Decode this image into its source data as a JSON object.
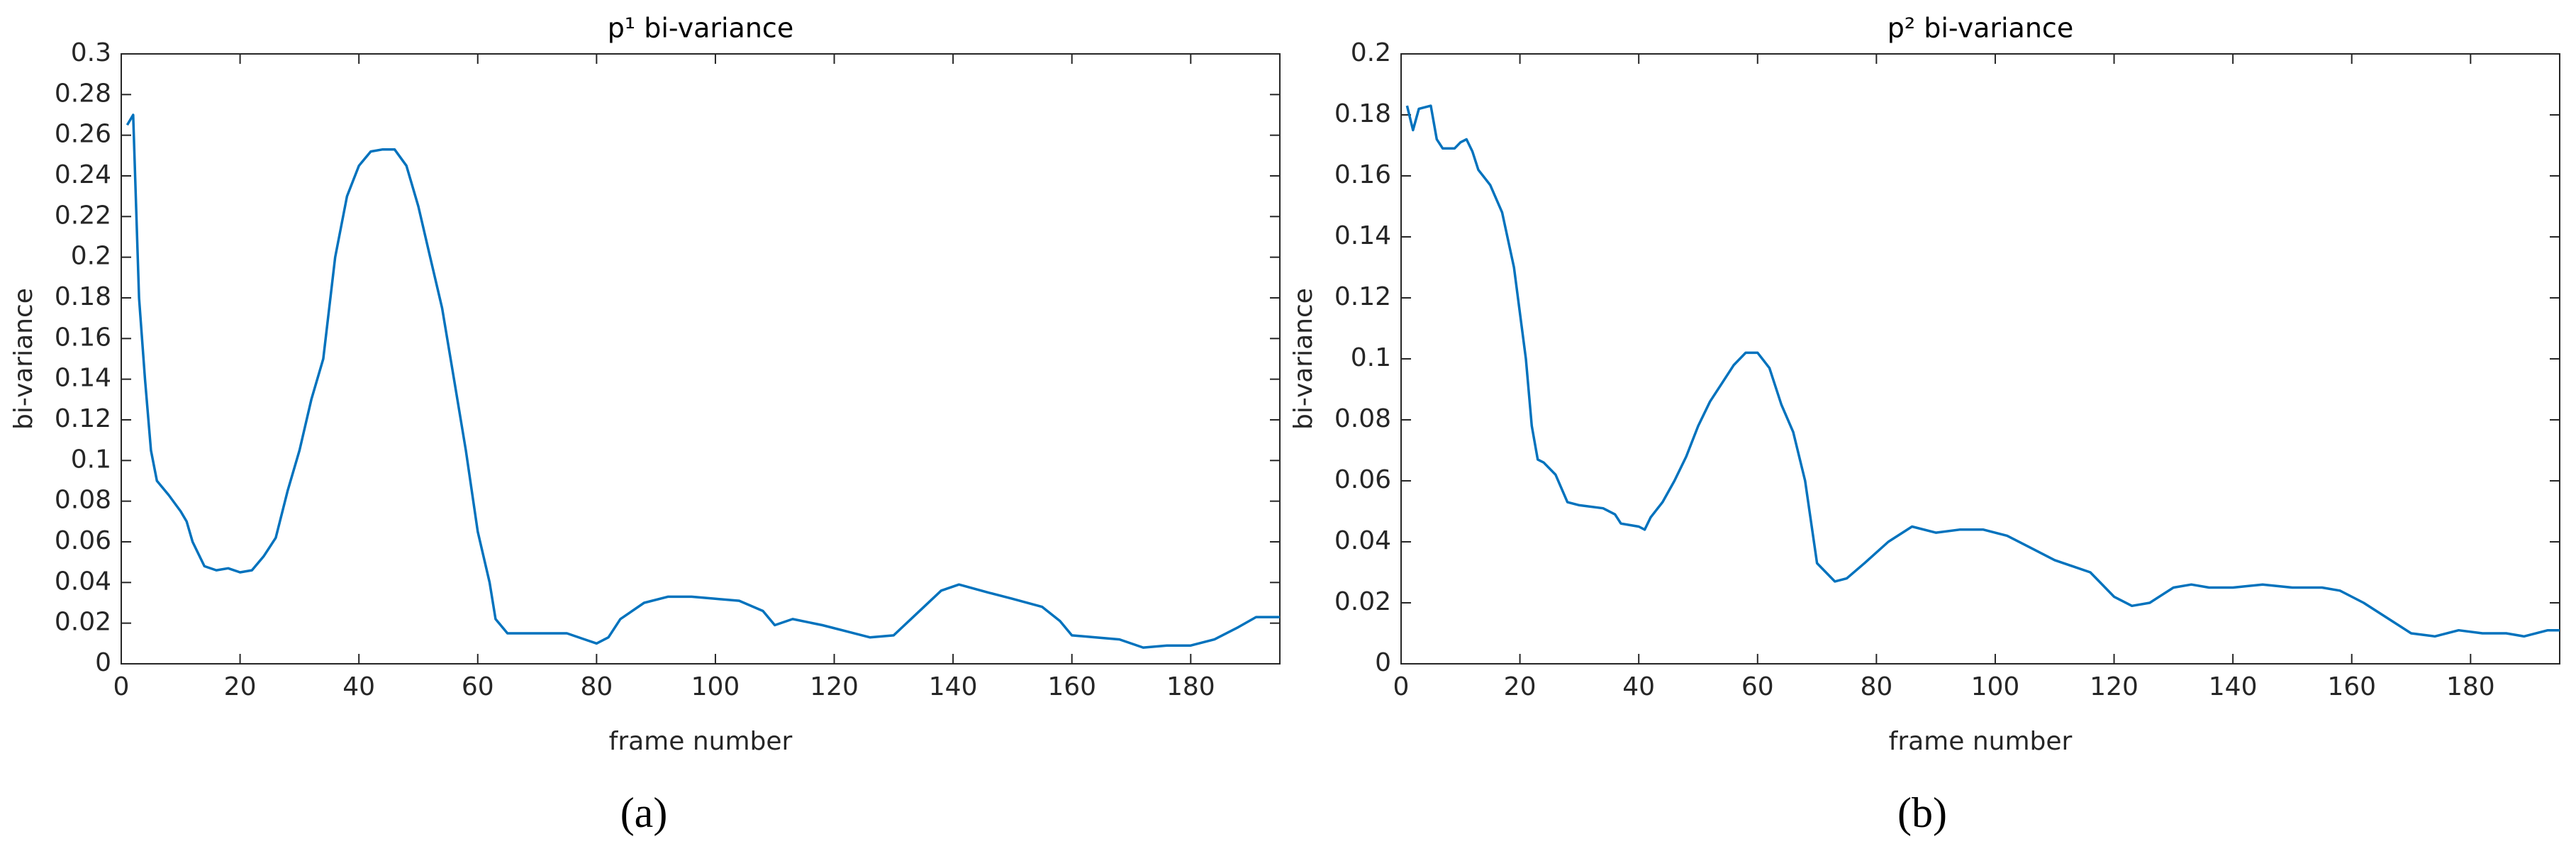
{
  "chart_data": [
    {
      "type": "line",
      "title": "p¹ bi-variance",
      "xlabel": "frame number",
      "ylabel": "bi-variance",
      "caption": "(a)",
      "xlim": [
        0,
        195
      ],
      "xticks": [
        0,
        20,
        40,
        60,
        80,
        100,
        120,
        140,
        160,
        180
      ],
      "ylim": [
        0,
        0.3
      ],
      "yticks": [
        0,
        0.02,
        0.04,
        0.06,
        0.08,
        0.1,
        0.12,
        0.14,
        0.16,
        0.18,
        0.2,
        0.22,
        0.24,
        0.26,
        0.28,
        0.3
      ],
      "series": [
        {
          "color": "#0072bd",
          "x": [
            1,
            2,
            3,
            4,
            5,
            6,
            8,
            10,
            11,
            12,
            14,
            16,
            18,
            20,
            22,
            24,
            26,
            28,
            30,
            32,
            34,
            36,
            38,
            40,
            42,
            44,
            46,
            48,
            50,
            52,
            54,
            56,
            58,
            60,
            62,
            63,
            65,
            70,
            75,
            78,
            80,
            82,
            84,
            88,
            92,
            96,
            100,
            104,
            108,
            110,
            113,
            118,
            122,
            126,
            130,
            134,
            138,
            141,
            146,
            150,
            155,
            158,
            160,
            164,
            168,
            172,
            176,
            180,
            184,
            188,
            191,
            195
          ],
          "values": [
            0.265,
            0.27,
            0.18,
            0.14,
            0.105,
            0.09,
            0.083,
            0.075,
            0.07,
            0.06,
            0.048,
            0.046,
            0.047,
            0.045,
            0.046,
            0.053,
            0.062,
            0.085,
            0.105,
            0.13,
            0.15,
            0.2,
            0.23,
            0.245,
            0.252,
            0.253,
            0.253,
            0.245,
            0.225,
            0.2,
            0.175,
            0.14,
            0.105,
            0.065,
            0.04,
            0.022,
            0.015,
            0.015,
            0.015,
            0.012,
            0.01,
            0.013,
            0.022,
            0.03,
            0.033,
            0.033,
            0.032,
            0.031,
            0.026,
            0.019,
            0.022,
            0.019,
            0.016,
            0.013,
            0.014,
            0.025,
            0.036,
            0.039,
            0.035,
            0.032,
            0.028,
            0.021,
            0.014,
            0.013,
            0.012,
            0.008,
            0.009,
            0.009,
            0.012,
            0.018,
            0.023,
            0.023
          ]
        }
      ]
    },
    {
      "type": "line",
      "title": "p² bi-variance",
      "xlabel": "frame number",
      "ylabel": "bi-variance",
      "caption": "(b)",
      "xlim": [
        0,
        195
      ],
      "xticks": [
        0,
        20,
        40,
        60,
        80,
        100,
        120,
        140,
        160,
        180
      ],
      "ylim": [
        0,
        0.2
      ],
      "yticks": [
        0,
        0.02,
        0.04,
        0.06,
        0.08,
        0.1,
        0.12,
        0.14,
        0.16,
        0.18,
        0.2
      ],
      "series": [
        {
          "color": "#0072bd",
          "x": [
            1,
            2,
            3,
            5,
            6,
            7,
            9,
            10,
            11,
            12,
            13,
            15,
            17,
            19,
            21,
            22,
            23,
            24,
            26,
            28,
            30,
            34,
            36,
            37,
            40,
            41,
            42,
            44,
            46,
            48,
            50,
            52,
            54,
            56,
            58,
            60,
            62,
            64,
            66,
            68,
            70,
            73,
            75,
            78,
            82,
            86,
            90,
            94,
            98,
            102,
            106,
            110,
            116,
            120,
            123,
            126,
            130,
            133,
            136,
            140,
            145,
            150,
            155,
            158,
            162,
            166,
            170,
            174,
            178,
            182,
            186,
            189,
            193,
            195
          ],
          "values": [
            0.183,
            0.175,
            0.182,
            0.183,
            0.172,
            0.169,
            0.169,
            0.171,
            0.172,
            0.168,
            0.162,
            0.157,
            0.148,
            0.13,
            0.1,
            0.078,
            0.067,
            0.066,
            0.062,
            0.053,
            0.052,
            0.051,
            0.049,
            0.046,
            0.045,
            0.044,
            0.048,
            0.053,
            0.06,
            0.068,
            0.078,
            0.086,
            0.092,
            0.098,
            0.102,
            0.102,
            0.097,
            0.085,
            0.076,
            0.06,
            0.033,
            0.027,
            0.028,
            0.033,
            0.04,
            0.045,
            0.043,
            0.044,
            0.044,
            0.042,
            0.038,
            0.034,
            0.03,
            0.022,
            0.019,
            0.02,
            0.025,
            0.026,
            0.025,
            0.025,
            0.026,
            0.025,
            0.025,
            0.024,
            0.02,
            0.015,
            0.01,
            0.009,
            0.011,
            0.01,
            0.01,
            0.009,
            0.011,
            0.011
          ]
        }
      ]
    }
  ]
}
